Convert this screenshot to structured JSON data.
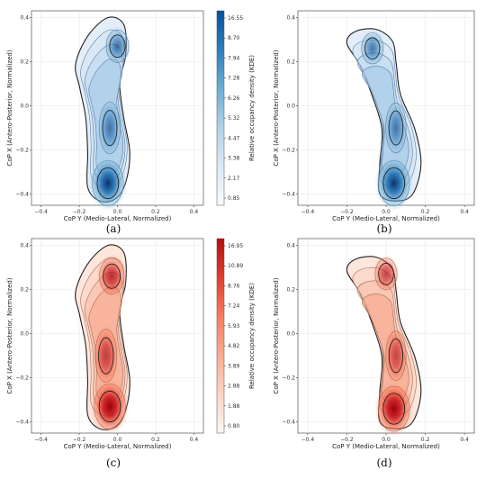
{
  "chart_data": [
    {
      "type": "contour",
      "panel_label": "(a)",
      "xlabel": "CoP Y (Medio-Lateral, Normalized)",
      "ylabel": "CoP X (Antero-Posterior, Normalized)",
      "xlim": [
        -0.45,
        0.45
      ],
      "ylim": [
        -0.45,
        0.43
      ],
      "xticks": [
        "−0.4",
        "−0.2",
        "0.0",
        "0.2",
        "0.4"
      ],
      "yticks": [
        "0.4",
        "0.2",
        "0.0",
        "−0.2",
        "−0.4"
      ],
      "colormap": "Blues",
      "density_peaks": [
        {
          "x": -0.05,
          "y": -0.35,
          "level": 16.55
        },
        {
          "x": -0.04,
          "y": -0.1,
          "level": 7.3
        },
        {
          "x": 0.0,
          "y": 0.27,
          "level": 8.7
        }
      ],
      "colorbar": {
        "label": "Relative occupancy density (KDE)",
        "ticks": [
          "16.55",
          "8.70",
          "7.94",
          "7.28",
          "6.26",
          "5.32",
          "4.47",
          "3.38",
          "2.17",
          "0.85"
        ]
      }
    },
    {
      "type": "contour",
      "panel_label": "(b)",
      "xlabel": "CoP Y (Medio-Lateral, Normalized)",
      "ylabel": "CoP X (Antero-Posterior, Normalized)",
      "xlim": [
        -0.45,
        0.45
      ],
      "ylim": [
        -0.45,
        0.43
      ],
      "xticks": [
        "−0.4",
        "−0.2",
        "0.0",
        "0.2",
        "0.4"
      ],
      "yticks": [
        "0.4",
        "0.2",
        "0.0",
        "−0.2",
        "−0.4"
      ],
      "colormap": "Blues",
      "density_peaks": [
        {
          "x": 0.04,
          "y": -0.35,
          "level": 16.0
        },
        {
          "x": 0.05,
          "y": -0.1,
          "level": 6.5
        },
        {
          "x": -0.07,
          "y": 0.26,
          "level": 7.5
        }
      ]
    },
    {
      "type": "contour",
      "panel_label": "(c)",
      "xlabel": "CoP Y (Medio-Lateral, Normalized)",
      "ylabel": "CoP X (Antero-Posterior, Normalized)",
      "xlim": [
        -0.45,
        0.45
      ],
      "ylim": [
        -0.45,
        0.43
      ],
      "xticks": [
        "−0.4",
        "−0.2",
        "0.0",
        "0.2",
        "0.4"
      ],
      "yticks": [
        "0.4",
        "0.2",
        "0.0",
        "−0.2",
        "−0.4"
      ],
      "colormap": "Reds",
      "density_peaks": [
        {
          "x": -0.04,
          "y": -0.33,
          "level": 16.95
        },
        {
          "x": -0.06,
          "y": -0.1,
          "level": 8.0
        },
        {
          "x": -0.03,
          "y": 0.26,
          "level": 10.89
        }
      ],
      "colorbar": {
        "label": "Relative occupancy density (KDE)",
        "ticks": [
          "16.95",
          "10.89",
          "8.76",
          "7.24",
          "5.93",
          "4.82",
          "3.89",
          "2.88",
          "1.88",
          "0.80"
        ]
      }
    },
    {
      "type": "contour",
      "panel_label": "(d)",
      "xlabel": "CoP Y (Medio-Lateral, Normalized)",
      "ylabel": "CoP X (Antero-Posterior, Normalized)",
      "xlim": [
        -0.45,
        0.45
      ],
      "ylim": [
        -0.45,
        0.43
      ],
      "xticks": [
        "−0.4",
        "−0.2",
        "0.0",
        "0.2",
        "0.4"
      ],
      "yticks": [
        "0.4",
        "0.2",
        "0.0",
        "−0.2",
        "−0.4"
      ],
      "colormap": "Reds",
      "density_peaks": [
        {
          "x": 0.04,
          "y": -0.34,
          "level": 16.5
        },
        {
          "x": 0.05,
          "y": -0.1,
          "level": 6.5
        },
        {
          "x": 0.0,
          "y": 0.27,
          "level": 8.0
        }
      ]
    }
  ]
}
